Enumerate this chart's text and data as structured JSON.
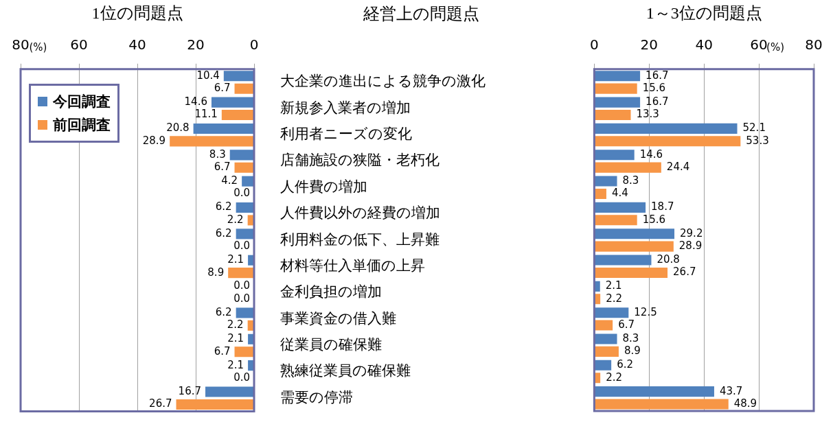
{
  "chart_data": [
    {
      "type": "bar",
      "orientation": "horizontal",
      "title": "1位の問題点",
      "ylabel": "経営上の問題点",
      "categories": [
        "大企業の進出による競争の激化",
        "新規参入業者の増加",
        "利用者ニーズの変化",
        "店舗施設の狭隘・老朽化",
        "人件費の増加",
        "人件費以外の経費の増加",
        "利用料金の低下、上昇難",
        "材料等仕入単価の上昇",
        "金利負担の増加",
        "事業資金の借入難",
        "従業員の確保難",
        "熟練従業員の確保難",
        "需要の停滞"
      ],
      "series": [
        {
          "name": "今回調査",
          "color": "#4f81bd",
          "values": [
            10.4,
            14.6,
            20.8,
            8.3,
            4.2,
            6.2,
            6.2,
            2.1,
            0.0,
            6.2,
            2.1,
            2.1,
            16.7
          ],
          "value_labels": [
            "10.4",
            "14.6",
            "20.8",
            "8.3",
            "4.2",
            "6.2",
            "6.2",
            "2.1",
            "0.0",
            "6.2",
            "2.1",
            "2.1",
            "16.7"
          ]
        },
        {
          "name": "前回調査",
          "color": "#f79646",
          "values": [
            6.7,
            11.1,
            28.9,
            6.7,
            0.0,
            2.2,
            0.0,
            8.9,
            0.0,
            2.2,
            6.7,
            0.0,
            26.7
          ],
          "value_labels": [
            "6.7",
            "11.1",
            "28.9",
            "6.7",
            "0.0",
            "2.2",
            "0.0",
            "8.9",
            "0.0",
            "2.2",
            "6.7",
            "0.0",
            "26.7"
          ]
        }
      ],
      "xlim": [
        80,
        0
      ],
      "xticks": [
        80,
        60,
        40,
        20,
        0
      ],
      "grid": "x",
      "legend": "top left",
      "annotations": [
        "(%)"
      ]
    },
    {
      "type": "bar",
      "orientation": "horizontal",
      "title": "1～3位の問題点",
      "categories": [
        null,
        null,
        null,
        null,
        null,
        null,
        null,
        null,
        null,
        null,
        null,
        null,
        null
      ],
      "series": [
        {
          "color": "#4f81bd",
          "values": [
            16.7,
            16.7,
            52.1,
            14.6,
            8.3,
            18.7,
            29.2,
            20.8,
            2.1,
            12.5,
            8.3,
            6.2,
            43.7
          ],
          "value_labels": [
            "16.7",
            "16.7",
            "52.1",
            "14.6",
            "8.3",
            "18.7",
            "29.2",
            "20.8",
            "2.1",
            "12.5",
            "8.3",
            "6.2",
            "43.7"
          ]
        },
        {
          "color": "#f79646",
          "values": [
            15.6,
            13.3,
            53.3,
            24.4,
            4.4,
            15.6,
            28.9,
            26.7,
            2.2,
            6.7,
            8.9,
            2.2,
            48.9
          ],
          "value_labels": [
            "15.6",
            "13.3",
            "53.3",
            "24.4",
            "4.4",
            "15.6",
            "28.9",
            "26.7",
            "2.2",
            "6.7",
            "8.9",
            "2.2",
            "48.9"
          ]
        }
      ],
      "xlim": [
        0,
        80
      ],
      "xticks": [
        0,
        20,
        40,
        60,
        80
      ],
      "grid": "x",
      "tick_labels": "x",
      "annotations": [
        "(%)"
      ]
    }
  ]
}
